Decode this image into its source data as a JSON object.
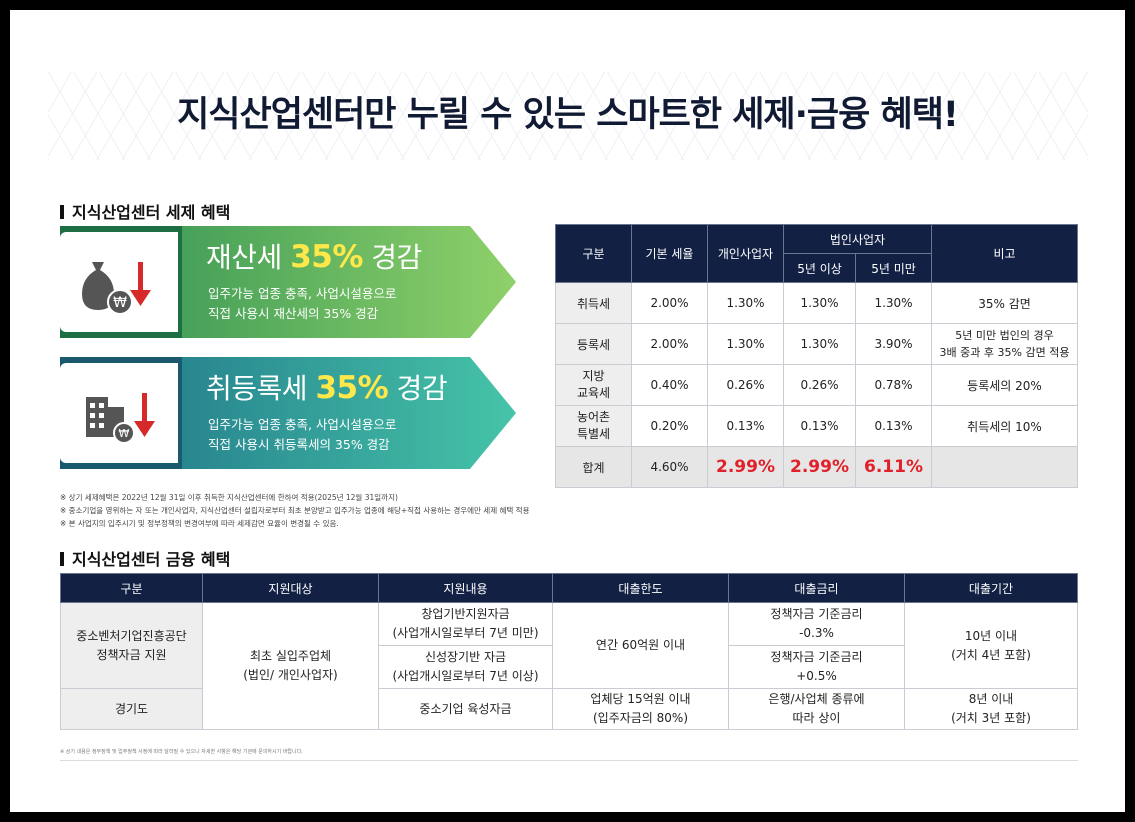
{
  "title": "지식산업센터만 누릴 수 있는 스마트한 세제·금융 혜택!",
  "tax_section": {
    "title": "지식산업센터 세제 혜택",
    "benefits": [
      {
        "icon": "money-bag-won-down-icon",
        "headline_pre": "재산세 ",
        "headline_pct": "35%",
        "headline_post": " 경감",
        "desc1": "입주가능 업종 충족, 사업시설용으로",
        "desc2": "직접 사용시 재산세의 35% 경감",
        "color": "#2f9e55"
      },
      {
        "icon": "building-won-down-icon",
        "headline_pre": "취등록세 ",
        "headline_pct": "35%",
        "headline_post": " 경감",
        "desc1": "입주가능 업종 충족, 사업시설용으로",
        "desc2": "직접 사용시 취등록세의 35% 경감",
        "color": "#1b7a90"
      }
    ],
    "table": {
      "h_category": "구분",
      "h_base": "기본 세율",
      "h_individual": "개인사업자",
      "h_corp": "법인사업자",
      "h_corp_5plus": "5년 이상",
      "h_corp_5less": "5년 미만",
      "h_note": "비고",
      "rows": [
        {
          "name": "취득세",
          "base": "2.00%",
          "ind": "1.30%",
          "c5p": "1.30%",
          "c5l": "1.30%",
          "note": "35% 감면"
        },
        {
          "name": "등록세",
          "base": "2.00%",
          "ind": "1.30%",
          "c5p": "1.30%",
          "c5l": "3.90%",
          "note": "5년 미만 법인의 경우\n3배 중과 후 35% 감면 적용"
        },
        {
          "name": "지방\n교육세",
          "base": "0.40%",
          "ind": "0.26%",
          "c5p": "0.26%",
          "c5l": "0.78%",
          "note": "등록세의 20%"
        },
        {
          "name": "농어촌\n특별세",
          "base": "0.20%",
          "ind": "0.13%",
          "c5p": "0.13%",
          "c5l": "0.13%",
          "note": "취득세의 10%"
        }
      ],
      "sum": {
        "name": "합계",
        "base": "4.60%",
        "ind": "2.99%",
        "c5p": "2.99%",
        "c5l": "6.11%",
        "note": ""
      }
    },
    "notes": [
      "※ 상기 세제혜택은 2022년 12월 31일 이후 취득한 지식산업센터에 한하여 적용(2025년 12월 31일까지)",
      "※ 중소기업을 영위하는 자 또는 개인사업자, 지식산업센터 설립자로부터 최초 분양받고 입주가능 업종에 해당+직접 사용하는 경우에만 세제 혜택 적용",
      "※ 본 사업지의 입주시기 및 정부정책의 변경여부에 따라 세제감면 요율이 변경될 수 있음."
    ]
  },
  "finance_section": {
    "title": "지식산업센터 금융 혜택",
    "headers": [
      "구분",
      "지원대상",
      "지원내용",
      "대출한도",
      "대출금리",
      "대출기간"
    ],
    "org1": "중소벤처기업진흥공단\n정책자금 지원",
    "org2": "경기도",
    "target": "최초 실입주업체\n(법인/ 개인사업자)",
    "content1": "창업기반지원자금\n(사업개시일로부터 7년 미만)",
    "content2": "신성장기반 자금\n(사업개시일로부터 7년 이상)",
    "content3": "중소기업 육성자금",
    "limit12": "연간 60억원 이내",
    "limit3": "업체당 15억원 이내\n(입주자금의 80%)",
    "rate1": "정책자금 기준금리\n-0.3%",
    "rate2": "정책자금 기준금리\n+0.5%",
    "rate3": "은행/사업체 종류에\n따라 상이",
    "period12": "10년 이내\n(거치 4년 포함)",
    "period3": "8년 이내\n(거치 3년 포함)"
  },
  "footnote": "※ 상기 내용은 정부정책 및 입주정책 사정에 따라 달라질 수 있으니 자세한 사항은 해당 기관에 문의하시기 바랍니다."
}
